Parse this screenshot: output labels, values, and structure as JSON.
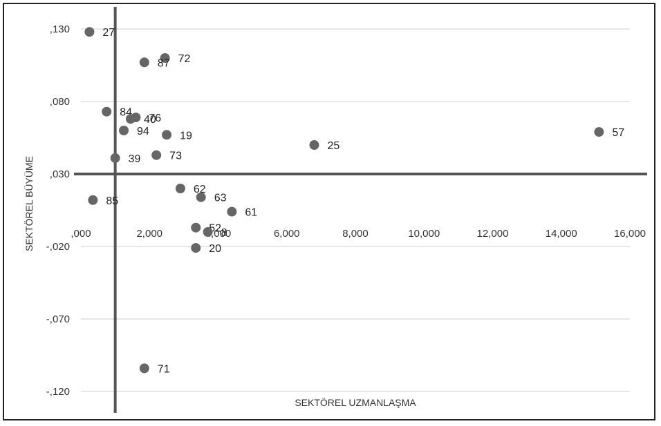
{
  "chart_data": {
    "type": "scatter",
    "xlabel": "SEKTÖREL UZMANLAŞMA",
    "ylabel": "SEKTÖREL BÜYÜME",
    "xlim": [
      0,
      16
    ],
    "ylim": [
      -0.13,
      0.135
    ],
    "x_ticks": [
      ",000",
      "2,000",
      "4,000",
      "6,000",
      "8,000",
      "10,000",
      "12,000",
      "14,000",
      "16,000"
    ],
    "x_tick_values": [
      0,
      2,
      4,
      6,
      8,
      10,
      12,
      14,
      16
    ],
    "y_ticks": [
      ",130",
      ",080",
      ",030",
      "-,020",
      "-,070",
      "-,120"
    ],
    "y_tick_values": [
      0.13,
      0.08,
      0.03,
      -0.02,
      -0.07,
      -0.12
    ],
    "gridlines": "horizontal",
    "reference_lines": {
      "x": 1.0,
      "y": 0.03
    },
    "marker_color": "#666666",
    "points": [
      {
        "label": "27",
        "x": 0.25,
        "y": 0.128
      },
      {
        "label": "72",
        "x": 2.45,
        "y": 0.11
      },
      {
        "label": "87",
        "x": 1.85,
        "y": 0.107
      },
      {
        "label": "84",
        "x": 0.75,
        "y": 0.073
      },
      {
        "label": "76",
        "x": 1.6,
        "y": 0.069
      },
      {
        "label": "40",
        "x": 1.45,
        "y": 0.068
      },
      {
        "label": "94",
        "x": 1.25,
        "y": 0.06
      },
      {
        "label": "19",
        "x": 2.5,
        "y": 0.057
      },
      {
        "label": "57",
        "x": 15.1,
        "y": 0.059
      },
      {
        "label": "25",
        "x": 6.8,
        "y": 0.05
      },
      {
        "label": "73",
        "x": 2.2,
        "y": 0.043
      },
      {
        "label": "39",
        "x": 1.0,
        "y": 0.041
      },
      {
        "label": "62",
        "x": 2.9,
        "y": 0.02
      },
      {
        "label": "63",
        "x": 3.5,
        "y": 0.014
      },
      {
        "label": "85",
        "x": 0.35,
        "y": 0.012
      },
      {
        "label": "61",
        "x": 4.4,
        "y": 0.004
      },
      {
        "label": "52",
        "x": 3.35,
        "y": -0.007
      },
      {
        "label": "8",
        "x": 3.7,
        "y": -0.01
      },
      {
        "label": "20",
        "x": 3.35,
        "y": -0.021
      },
      {
        "label": "71",
        "x": 1.85,
        "y": -0.104
      }
    ]
  }
}
